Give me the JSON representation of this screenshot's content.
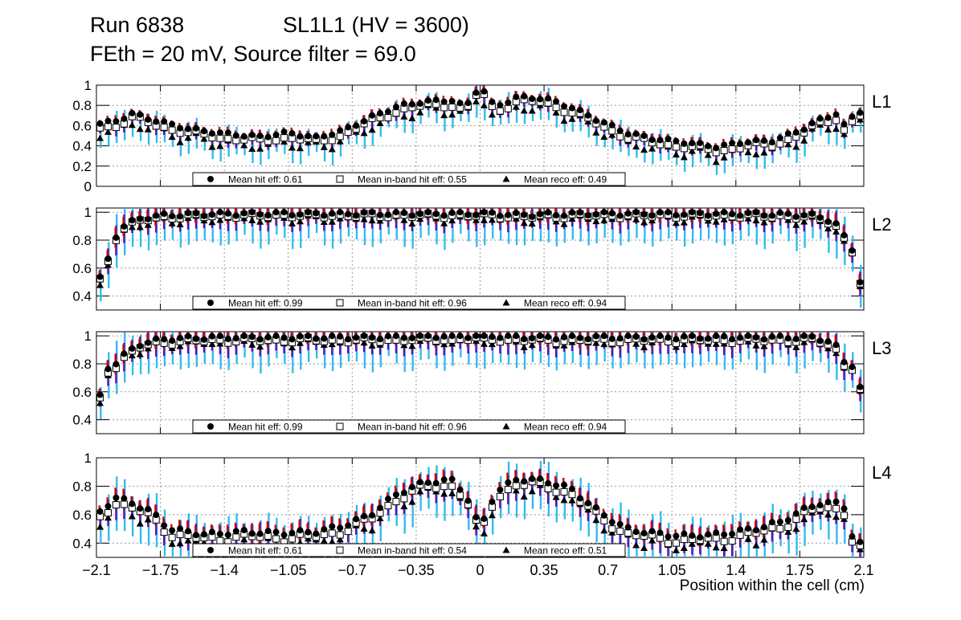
{
  "header": {
    "run": "Run 6838",
    "chamber": "SL1L1 (HV = 3600)",
    "conditions": "FEth = 20 mV, Source filter = 69.0"
  },
  "colors": {
    "hit_errbar": "#cc0000",
    "inband_errbar": "#6a0dad",
    "reco_errbar": "#33bbee",
    "marker": "#000000",
    "grid": "#999999"
  },
  "chart_data": [
    {
      "type": "scatter",
      "panel": "L1",
      "xlim": [
        -2.1,
        2.1
      ],
      "ylim": [
        0,
        1
      ],
      "yticks": [
        0,
        0.2,
        0.4,
        0.6,
        0.8,
        1
      ],
      "yticklabels": [
        "0",
        "0.2",
        "0.4",
        "0.6",
        "0.8",
        "1"
      ],
      "grid": true,
      "legend": [
        {
          "marker": "circle",
          "label": "Mean hit  eff: 0.61"
        },
        {
          "marker": "open-square",
          "label": "Mean in-band hit eff: 0.55"
        },
        {
          "marker": "triangle",
          "label": "Mean reco eff: 0.49"
        }
      ],
      "anchors_hit": [
        [
          -2.08,
          0.62
        ],
        [
          -2.0,
          0.64
        ],
        [
          -1.9,
          0.72
        ],
        [
          -1.8,
          0.66
        ],
        [
          -1.6,
          0.57
        ],
        [
          -1.4,
          0.52
        ],
        [
          -1.2,
          0.49
        ],
        [
          -1.05,
          0.53
        ],
        [
          -0.9,
          0.48
        ],
        [
          -0.75,
          0.55
        ],
        [
          -0.6,
          0.68
        ],
        [
          -0.45,
          0.79
        ],
        [
          -0.3,
          0.84
        ],
        [
          -0.15,
          0.85
        ],
        [
          -0.08,
          0.78
        ],
        [
          0.0,
          1.0
        ],
        [
          0.08,
          0.78
        ],
        [
          0.2,
          0.88
        ],
        [
          0.35,
          0.87
        ],
        [
          0.5,
          0.78
        ],
        [
          0.65,
          0.65
        ],
        [
          0.8,
          0.53
        ],
        [
          0.95,
          0.47
        ],
        [
          1.1,
          0.44
        ],
        [
          1.3,
          0.39
        ],
        [
          1.45,
          0.44
        ],
        [
          1.6,
          0.45
        ],
        [
          1.75,
          0.55
        ],
        [
          1.85,
          0.65
        ],
        [
          1.95,
          0.72
        ],
        [
          2.0,
          0.58
        ],
        [
          2.05,
          0.72
        ],
        [
          2.09,
          0.75
        ]
      ],
      "d_inband": 0.06,
      "d_reco": 0.12,
      "err": 0.1
    },
    {
      "type": "scatter",
      "panel": "L2",
      "xlim": [
        -2.1,
        2.1
      ],
      "ylim": [
        0.3,
        1.03
      ],
      "yticks": [
        0.4,
        0.6,
        0.8,
        1
      ],
      "yticklabels": [
        "0.4",
        "0.6",
        "0.8",
        "1"
      ],
      "grid": true,
      "legend": [
        {
          "marker": "circle",
          "label": "Mean hit  eff: 0.99"
        },
        {
          "marker": "open-square",
          "label": "Mean in-band hit eff: 0.96"
        },
        {
          "marker": "triangle",
          "label": "Mean reco eff: 0.94"
        }
      ],
      "anchors_hit": [
        [
          -2.09,
          0.5
        ],
        [
          -2.05,
          0.6
        ],
        [
          -2.0,
          0.82
        ],
        [
          -1.95,
          0.9
        ],
        [
          -1.85,
          0.96
        ],
        [
          -1.7,
          0.98
        ],
        [
          -1.4,
          0.99
        ],
        [
          -0.6,
          0.99
        ],
        [
          -0.2,
          0.99
        ],
        [
          -0.08,
          0.99
        ],
        [
          0.0,
          0.99
        ],
        [
          0.08,
          0.99
        ],
        [
          0.2,
          0.98
        ],
        [
          0.6,
          0.99
        ],
        [
          1.4,
          0.99
        ],
        [
          1.8,
          0.98
        ],
        [
          1.9,
          0.95
        ],
        [
          1.97,
          0.9
        ],
        [
          2.01,
          0.76
        ],
        [
          2.05,
          0.72
        ],
        [
          2.09,
          0.44
        ]
      ],
      "d_inband": 0.02,
      "d_reco": 0.05,
      "err": 0.12
    },
    {
      "type": "scatter",
      "panel": "L3",
      "xlim": [
        -2.1,
        2.1
      ],
      "ylim": [
        0.3,
        1.03
      ],
      "yticks": [
        0.4,
        0.6,
        0.8,
        1
      ],
      "yticklabels": [
        "0.4",
        "0.6",
        "0.8",
        "1"
      ],
      "grid": true,
      "legend": [
        {
          "marker": "circle",
          "label": "Mean hit  eff: 0.99"
        },
        {
          "marker": "open-square",
          "label": "Mean in-band hit eff: 0.96"
        },
        {
          "marker": "triangle",
          "label": "Mean reco eff: 0.94"
        }
      ],
      "anchors_hit": [
        [
          -2.09,
          0.5
        ],
        [
          -2.05,
          0.76
        ],
        [
          -2.0,
          0.8
        ],
        [
          -1.95,
          0.86
        ],
        [
          -1.85,
          0.95
        ],
        [
          -1.7,
          0.98
        ],
        [
          -1.4,
          0.99
        ],
        [
          -0.6,
          0.99
        ],
        [
          -0.2,
          1.0
        ],
        [
          -0.08,
          1.0
        ],
        [
          0.0,
          1.0
        ],
        [
          0.08,
          1.0
        ],
        [
          0.2,
          0.99
        ],
        [
          0.6,
          0.99
        ],
        [
          1.4,
          0.99
        ],
        [
          1.8,
          0.99
        ],
        [
          1.9,
          0.97
        ],
        [
          1.97,
          0.9
        ],
        [
          2.01,
          0.74
        ],
        [
          2.05,
          0.82
        ],
        [
          2.09,
          0.57
        ]
      ],
      "d_inband": 0.03,
      "d_reco": 0.05,
      "err": 0.12
    },
    {
      "type": "scatter",
      "panel": "L4",
      "xlim": [
        -2.1,
        2.1
      ],
      "ylim": [
        0.3,
        1.0
      ],
      "yticks": [
        0.4,
        0.6,
        0.8,
        1
      ],
      "yticklabels": [
        "0.4",
        "0.6",
        "0.8",
        "1"
      ],
      "grid": true,
      "legend": [
        {
          "marker": "circle",
          "label": "Mean hit  eff: 0.61"
        },
        {
          "marker": "open-square",
          "label": "Mean in-band hit eff: 0.54"
        },
        {
          "marker": "triangle",
          "label": "Mean reco eff: 0.51"
        }
      ],
      "anchors_hit": [
        [
          -2.08,
          0.62
        ],
        [
          -2.0,
          0.72
        ],
        [
          -1.9,
          0.68
        ],
        [
          -1.8,
          0.62
        ],
        [
          -1.7,
          0.5
        ],
        [
          -1.5,
          0.46
        ],
        [
          -1.3,
          0.48
        ],
        [
          -1.1,
          0.47
        ],
        [
          -0.9,
          0.48
        ],
        [
          -0.75,
          0.52
        ],
        [
          -0.6,
          0.6
        ],
        [
          -0.45,
          0.75
        ],
        [
          -0.3,
          0.83
        ],
        [
          -0.15,
          0.84
        ],
        [
          -0.08,
          0.75
        ],
        [
          0.0,
          0.5
        ],
        [
          0.08,
          0.75
        ],
        [
          0.2,
          0.85
        ],
        [
          0.35,
          0.84
        ],
        [
          0.5,
          0.78
        ],
        [
          0.65,
          0.62
        ],
        [
          0.8,
          0.5
        ],
        [
          0.95,
          0.47
        ],
        [
          1.1,
          0.45
        ],
        [
          1.3,
          0.46
        ],
        [
          1.5,
          0.5
        ],
        [
          1.65,
          0.55
        ],
        [
          1.75,
          0.62
        ],
        [
          1.85,
          0.68
        ],
        [
          1.95,
          0.68
        ],
        [
          2.0,
          0.65
        ],
        [
          2.05,
          0.38
        ],
        [
          2.09,
          0.4
        ]
      ],
      "d_inband": 0.05,
      "d_reco": 0.09,
      "err": 0.12
    }
  ],
  "xaxis": {
    "xlim": [
      -2.1,
      2.1
    ],
    "ticks": [
      -2.1,
      -1.75,
      -1.4,
      -1.05,
      -0.7,
      -0.35,
      0,
      0.35,
      0.7,
      1.05,
      1.4,
      1.75,
      2.1
    ],
    "ticklabels": [
      "−2.1",
      "−1.75",
      "−1.4",
      "−1.05",
      "−0.7",
      "−0.35",
      "0",
      "0.35",
      "0.7",
      "1.05",
      "1.4",
      "1.75",
      "2.1"
    ],
    "label": "Position within the cell (cm)"
  }
}
